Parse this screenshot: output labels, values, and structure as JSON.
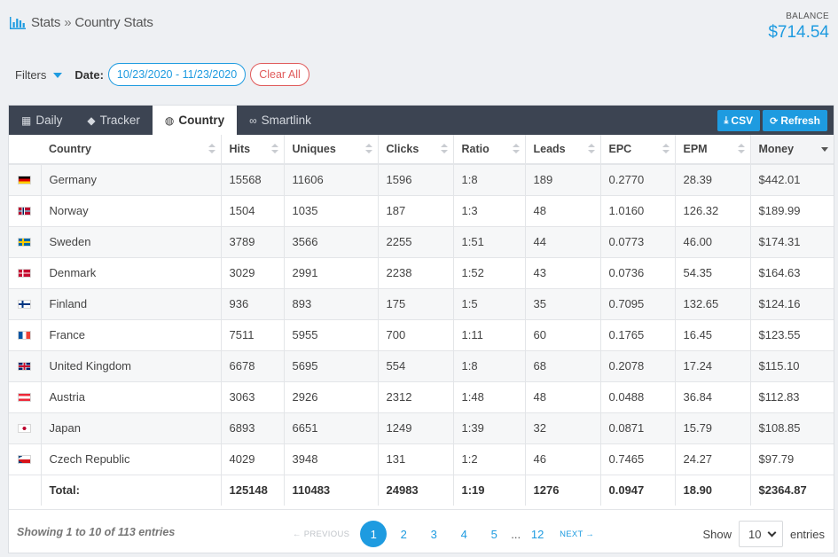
{
  "breadcrumb": {
    "root": "Stats",
    "sep": "»",
    "current": "Country Stats"
  },
  "balance": {
    "label": "BALANCE",
    "value": "$714.54"
  },
  "filters": {
    "label": "Filters",
    "date_label": "Date:",
    "date_value": "10/23/2020 - 11/23/2020",
    "clear_label": "Clear All"
  },
  "tabs": [
    {
      "label": "Daily",
      "icon": "calendar-icon",
      "active": false
    },
    {
      "label": "Tracker",
      "icon": "tag-icon",
      "active": false
    },
    {
      "label": "Country",
      "icon": "globe-icon",
      "active": true
    },
    {
      "label": "Smartlink",
      "icon": "link-icon",
      "active": false
    }
  ],
  "buttons": {
    "csv": "CSV",
    "refresh": "Refresh"
  },
  "columns": [
    "Country",
    "Hits",
    "Uniques",
    "Clicks",
    "Ratio",
    "Leads",
    "EPC",
    "EPM",
    "Money"
  ],
  "rows": [
    {
      "country": "Germany",
      "flag": "de",
      "hits": "15568",
      "uniques": "11606",
      "clicks": "1596",
      "ratio": "1:8",
      "leads": "189",
      "epc": "0.2770",
      "epm": "28.39",
      "money": "$442.01"
    },
    {
      "country": "Norway",
      "flag": "no",
      "hits": "1504",
      "uniques": "1035",
      "clicks": "187",
      "ratio": "1:3",
      "leads": "48",
      "epc": "1.0160",
      "epm": "126.32",
      "money": "$189.99"
    },
    {
      "country": "Sweden",
      "flag": "se",
      "hits": "3789",
      "uniques": "3566",
      "clicks": "2255",
      "ratio": "1:51",
      "leads": "44",
      "epc": "0.0773",
      "epm": "46.00",
      "money": "$174.31"
    },
    {
      "country": "Denmark",
      "flag": "dk",
      "hits": "3029",
      "uniques": "2991",
      "clicks": "2238",
      "ratio": "1:52",
      "leads": "43",
      "epc": "0.0736",
      "epm": "54.35",
      "money": "$164.63"
    },
    {
      "country": "Finland",
      "flag": "fi",
      "hits": "936",
      "uniques": "893",
      "clicks": "175",
      "ratio": "1:5",
      "leads": "35",
      "epc": "0.7095",
      "epm": "132.65",
      "money": "$124.16"
    },
    {
      "country": "France",
      "flag": "fr",
      "hits": "7511",
      "uniques": "5955",
      "clicks": "700",
      "ratio": "1:11",
      "leads": "60",
      "epc": "0.1765",
      "epm": "16.45",
      "money": "$123.55"
    },
    {
      "country": "United Kingdom",
      "flag": "gb",
      "hits": "6678",
      "uniques": "5695",
      "clicks": "554",
      "ratio": "1:8",
      "leads": "68",
      "epc": "0.2078",
      "epm": "17.24",
      "money": "$115.10"
    },
    {
      "country": "Austria",
      "flag": "at",
      "hits": "3063",
      "uniques": "2926",
      "clicks": "2312",
      "ratio": "1:48",
      "leads": "48",
      "epc": "0.0488",
      "epm": "36.84",
      "money": "$112.83"
    },
    {
      "country": "Japan",
      "flag": "jp",
      "hits": "6893",
      "uniques": "6651",
      "clicks": "1249",
      "ratio": "1:39",
      "leads": "32",
      "epc": "0.0871",
      "epm": "15.79",
      "money": "$108.85"
    },
    {
      "country": "Czech Republic",
      "flag": "cz",
      "hits": "4029",
      "uniques": "3948",
      "clicks": "131",
      "ratio": "1:2",
      "leads": "46",
      "epc": "0.7465",
      "epm": "24.27",
      "money": "$97.79"
    }
  ],
  "total": {
    "label": "Total:",
    "hits": "125148",
    "uniques": "110483",
    "clicks": "24983",
    "ratio": "1:19",
    "leads": "1276",
    "epc": "0.0947",
    "epm": "18.90",
    "money": "$2364.87"
  },
  "footer": {
    "info": "Showing 1 to 10 of 113 entries",
    "prev": "← PREVIOUS",
    "next": "NEXT →",
    "pages": [
      "1",
      "2",
      "3",
      "4",
      "5"
    ],
    "dots": "...",
    "last_page": "12",
    "active_page": "1",
    "show_label": "Show",
    "entries_value": "10",
    "entries_label": "entries"
  },
  "colors": {
    "accent": "#1e9be0",
    "danger": "#e05a5a",
    "tabbar": "#3c4452"
  }
}
